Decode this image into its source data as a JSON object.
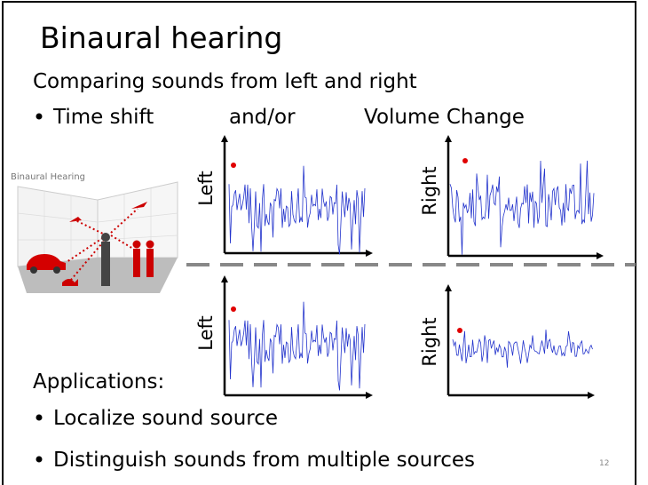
{
  "title": "Binaural hearing",
  "subtitle": "Comparing sounds from left and right",
  "comparison": {
    "items": [
      "Time shift",
      "and/or",
      "Volume Change"
    ]
  },
  "image_caption": "Binaural Hearing",
  "plots": [
    {
      "label": "Left"
    },
    {
      "label": "Right"
    },
    {
      "label": "Left"
    },
    {
      "label": "Right"
    }
  ],
  "applications": {
    "heading": "Applications:",
    "items": [
      "Localize sound source",
      "Distinguish sounds from multiple sources"
    ]
  },
  "page_number": "12"
}
